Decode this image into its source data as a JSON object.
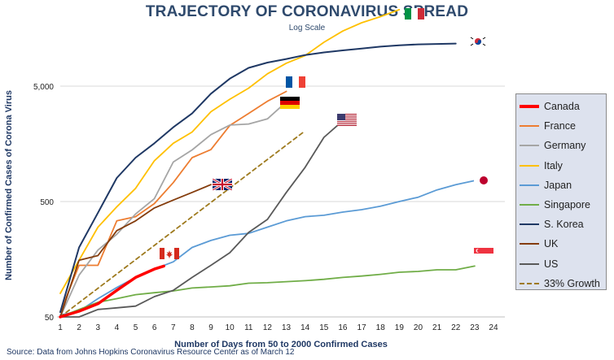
{
  "chart_data": {
    "type": "line",
    "title": "TRAJECTORY OF CORONAVIRUS SPREAD",
    "subtitle": "Log Scale",
    "xlabel": "Number of Days from 50 to 2000 Confirmed Cases",
    "ylabel": "Number of Confirmed Cases of Corona Virus",
    "yscale": "log",
    "ylim": [
      50,
      20000
    ],
    "xlim": [
      1,
      24
    ],
    "x_ticks": [
      1,
      2,
      3,
      4,
      5,
      6,
      7,
      8,
      9,
      10,
      11,
      12,
      13,
      14,
      15,
      16,
      17,
      18,
      19,
      20,
      21,
      22,
      23,
      24
    ],
    "y_ticks": [
      {
        "value": 50,
        "label": "50"
      },
      {
        "value": 500,
        "label": "500"
      },
      {
        "value": 5000,
        "label": "5,000"
      }
    ],
    "legend_position": "right",
    "series": [
      {
        "name": "Canada",
        "color": "#ff0000",
        "width": 3.5,
        "dash": false,
        "x": [
          1,
          2,
          3,
          4,
          5,
          6,
          6.5
        ],
        "y": [
          50,
          56,
          65,
          85,
          110,
          130,
          138
        ]
      },
      {
        "name": "France",
        "color": "#ed7d31",
        "width": 1.8,
        "dash": false,
        "x": [
          1,
          2,
          3,
          4,
          5,
          6,
          7,
          8,
          9,
          10,
          11,
          12,
          13
        ],
        "y": [
          55,
          140,
          140,
          340,
          370,
          480,
          730,
          1200,
          1410,
          2280,
          2900,
          3700,
          4500
        ]
      },
      {
        "name": "Germany",
        "color": "#a5a5a5",
        "width": 1.8,
        "dash": false,
        "x": [
          1,
          2,
          3,
          4,
          5,
          6,
          7,
          8,
          9,
          10,
          11,
          12,
          13
        ],
        "y": [
          50,
          115,
          190,
          260,
          390,
          530,
          1100,
          1400,
          1900,
          2300,
          2350,
          2600,
          3650
        ]
      },
      {
        "name": "Italy",
        "color": "#ffc000",
        "width": 1.8,
        "dash": false,
        "x": [
          1,
          2,
          3,
          4,
          5,
          6,
          7,
          8,
          9,
          10,
          11,
          12,
          13,
          14,
          15,
          16,
          17,
          18,
          19
        ],
        "y": [
          80,
          155,
          300,
          450,
          650,
          1128,
          1600,
          2000,
          3000,
          3850,
          4800,
          6400,
          7900,
          9200,
          12000,
          15000,
          17700,
          20000,
          23000
        ]
      },
      {
        "name": "Japan",
        "color": "#5b9bd5",
        "width": 1.8,
        "dash": false,
        "x": [
          1,
          2,
          3,
          4,
          5,
          6,
          7,
          8,
          9,
          10,
          11,
          12,
          13,
          14,
          15,
          16,
          17,
          18,
          19,
          20,
          21,
          22,
          23
        ],
        "y": [
          52,
          56,
          72,
          90,
          110,
          130,
          150,
          200,
          230,
          255,
          265,
          300,
          340,
          370,
          380,
          405,
          425,
          455,
          500,
          545,
          630,
          700,
          760
        ]
      },
      {
        "name": "Singapore",
        "color": "#70ad47",
        "width": 1.8,
        "dash": false,
        "x": [
          1,
          2,
          3,
          4,
          5,
          6,
          7,
          8,
          9,
          10,
          11,
          12,
          13,
          14,
          15,
          16,
          17,
          18,
          19,
          20,
          21,
          22,
          23
        ],
        "y": [
          50,
          58,
          67,
          72,
          78,
          81,
          84,
          89,
          91,
          93,
          98,
          99,
          101,
          103,
          106,
          110,
          113,
          117,
          122,
          124,
          128,
          128,
          138
        ]
      },
      {
        "name": "S. Korea",
        "color": "#1f3864",
        "width": 2.0,
        "dash": false,
        "x": [
          1,
          2,
          3,
          4,
          5,
          6,
          7,
          8,
          9,
          10,
          11,
          12,
          13,
          14,
          15,
          16,
          17,
          18,
          19,
          20,
          21,
          22
        ],
        "y": [
          55,
          200,
          400,
          800,
          1200,
          1600,
          2200,
          2900,
          4300,
          5800,
          7200,
          8000,
          8600,
          9300,
          9800,
          10200,
          10600,
          11000,
          11300,
          11500,
          11600,
          11700
        ]
      },
      {
        "name": "UK",
        "color": "#843c0c",
        "width": 1.8,
        "dash": false,
        "x": [
          1,
          2,
          3,
          4,
          5,
          6,
          7,
          8,
          9
        ],
        "y": [
          50,
          155,
          170,
          280,
          340,
          440,
          515,
          600,
          700
        ]
      },
      {
        "name": "US",
        "color": "#595959",
        "width": 1.8,
        "dash": false,
        "x": [
          1,
          2,
          3,
          4,
          5,
          6,
          7,
          8,
          9,
          10,
          11,
          12,
          13,
          14,
          15,
          16
        ],
        "y": [
          50,
          50,
          58,
          60,
          62,
          75,
          85,
          110,
          140,
          180,
          270,
          350,
          600,
          990,
          1800,
          2500
        ]
      },
      {
        "name": "33% Growth",
        "color": "#9e7a1e",
        "width": 1.8,
        "dash": true,
        "x": [
          1,
          14
        ],
        "y": [
          50,
          2050
        ]
      }
    ],
    "flags": [
      {
        "country": "Italy",
        "x": 19.8,
        "y": 21000
      },
      {
        "country": "S. Korea",
        "x": 23.2,
        "y": 12100
      },
      {
        "country": "France",
        "x": 13.5,
        "y": 5400
      },
      {
        "country": "Germany",
        "x": 13.2,
        "y": 3600
      },
      {
        "country": "US",
        "x": 16.2,
        "y": 2550
      },
      {
        "country": "UK",
        "x": 9.6,
        "y": 700
      },
      {
        "country": "Japan",
        "x": 23.5,
        "y": 760
      },
      {
        "country": "Canada",
        "x": 6.8,
        "y": 178
      },
      {
        "country": "Singapore",
        "x": 23.5,
        "y": 178
      }
    ]
  },
  "legend": {
    "items": [
      {
        "label": "Canada",
        "color": "#ff0000",
        "dash": false,
        "thick": true
      },
      {
        "label": "France",
        "color": "#ed7d31",
        "dash": false,
        "thick": false
      },
      {
        "label": "Germany",
        "color": "#a5a5a5",
        "dash": false,
        "thick": false
      },
      {
        "label": "Italy",
        "color": "#ffc000",
        "dash": false,
        "thick": false
      },
      {
        "label": "Japan",
        "color": "#5b9bd5",
        "dash": false,
        "thick": false
      },
      {
        "label": "Singapore",
        "color": "#70ad47",
        "dash": false,
        "thick": false
      },
      {
        "label": "S. Korea",
        "color": "#1f3864",
        "dash": false,
        "thick": false
      },
      {
        "label": "UK",
        "color": "#843c0c",
        "dash": false,
        "thick": false
      },
      {
        "label": "US",
        "color": "#595959",
        "dash": false,
        "thick": false
      },
      {
        "label": "33% Growth",
        "color": "#9e7a1e",
        "dash": true,
        "thick": false
      }
    ]
  },
  "source": "Source: Data from Johns Hopkins Coronavirus Resource Center as of March 12"
}
